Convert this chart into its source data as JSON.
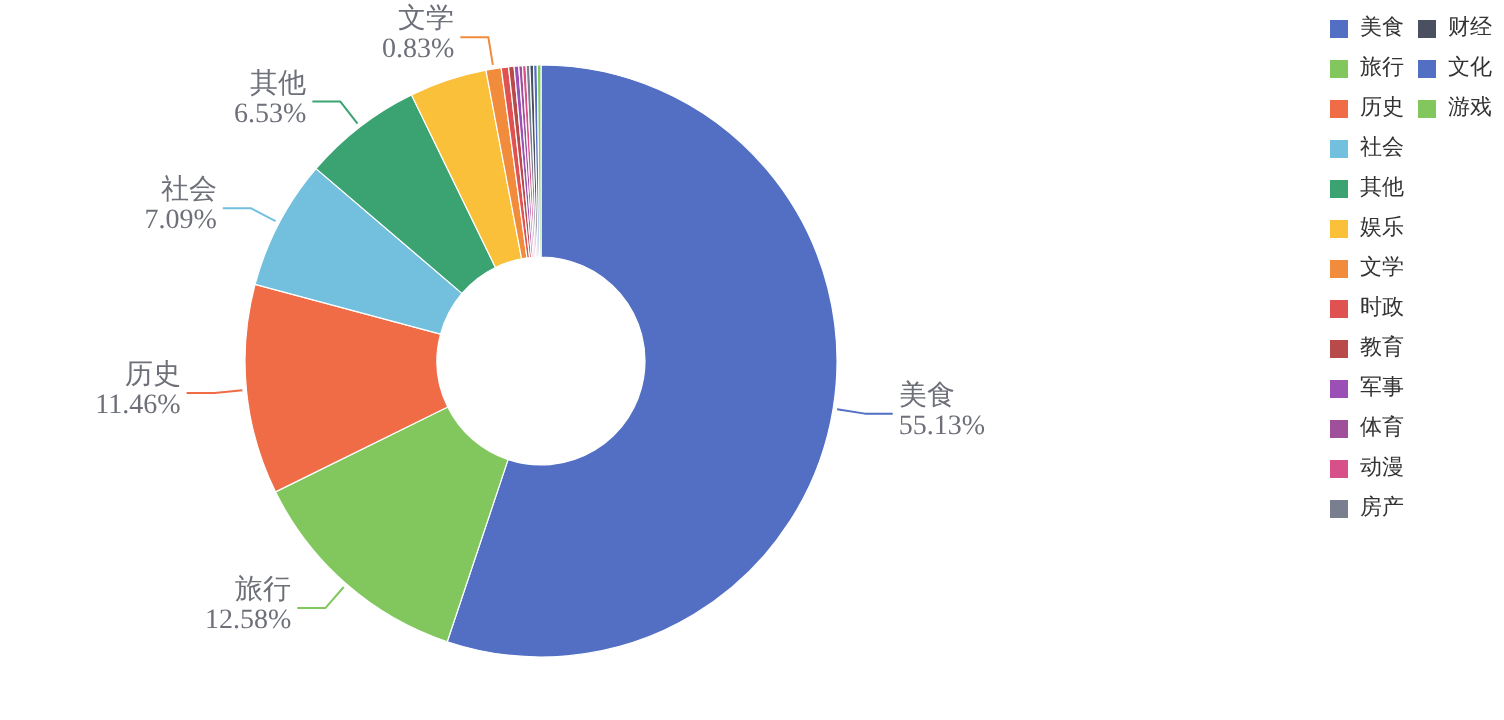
{
  "chart_data": {
    "type": "donut",
    "legend": "top right",
    "categories": [
      "美食",
      "旅行",
      "历史",
      "社会",
      "其他",
      "娱乐",
      "文学",
      "时政",
      "教育",
      "军事",
      "体育",
      "动漫",
      "房产",
      "财经",
      "文化",
      "游戏"
    ],
    "values": [
      55.13,
      12.58,
      11.46,
      7.09,
      6.53,
      4.23,
      0.83,
      0.4,
      0.3,
      0.25,
      0.2,
      0.2,
      0.2,
      0.2,
      0.2,
      0.2
    ],
    "value_labels": [
      "55.13%",
      "12.58%",
      "11.46%",
      "7.09%",
      "6.53%",
      null,
      "0.83%",
      null,
      null,
      null,
      null,
      null,
      null,
      null,
      null,
      null
    ],
    "colors": [
      "#536fc4",
      "#82c75e",
      "#ef6c47",
      "#73c0de",
      "#3ba272",
      "#fac03a",
      "#f08c3c",
      "#e05252",
      "#b84a4a",
      "#9a50b4",
      "#a0509a",
      "#d8508a",
      "#7a7f90",
      "#4b5060",
      "#536fc4",
      "#82c75e"
    ]
  }
}
